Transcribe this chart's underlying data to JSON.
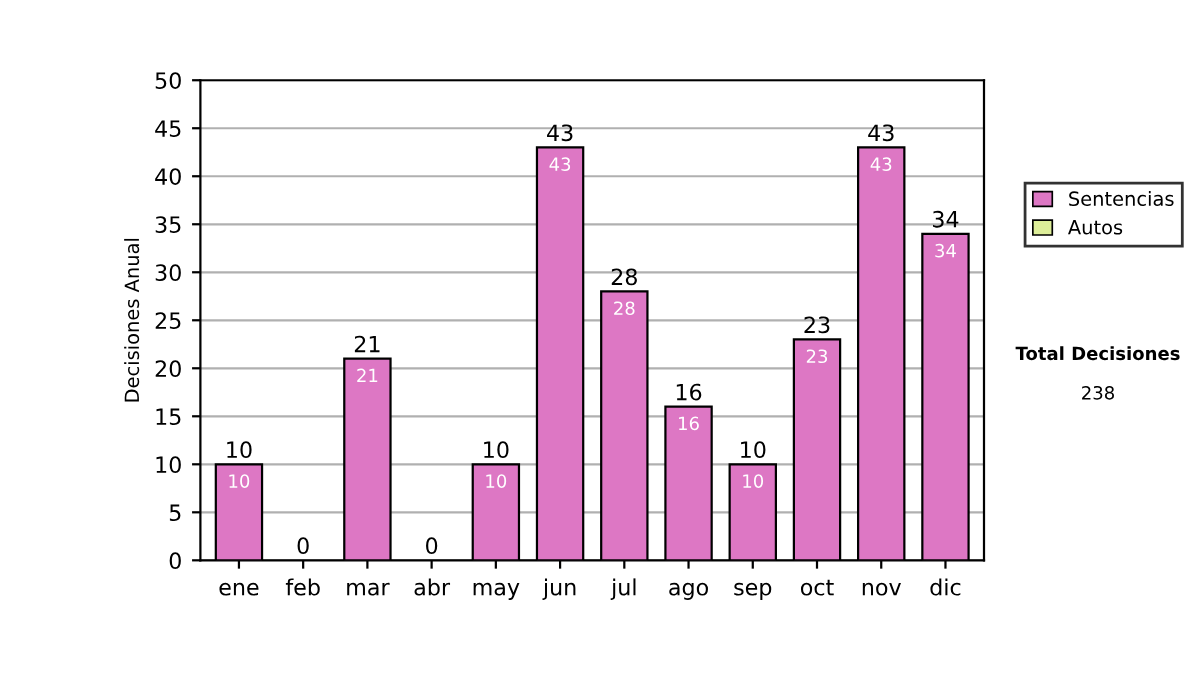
{
  "chart_data": {
    "type": "bar",
    "stacked": true,
    "categories": [
      "ene",
      "feb",
      "mar",
      "abr",
      "may",
      "jun",
      "jul",
      "ago",
      "sep",
      "oct",
      "nov",
      "dic"
    ],
    "series": [
      {
        "name": "Sentencias",
        "color": "#dd77c4",
        "values": [
          10,
          0,
          21,
          0,
          10,
          43,
          28,
          16,
          10,
          23,
          43,
          34
        ],
        "value_labels": [
          "10",
          null,
          "21",
          null,
          "10",
          "43",
          "28",
          "16",
          "10",
          "23",
          "43",
          "34"
        ]
      },
      {
        "name": "Autos",
        "color": "#ddee99",
        "values": [
          0,
          0,
          0,
          0,
          0,
          0,
          0,
          0,
          0,
          0,
          0,
          0
        ]
      }
    ],
    "totals": [
      "10",
      "0",
      "21",
      "0",
      "10",
      "43",
      "28",
      "16",
      "10",
      "23",
      "43",
      "34"
    ],
    "ylabel": "Decisiones Anual",
    "ylim": [
      0,
      50
    ],
    "yticks": [
      0,
      5,
      10,
      15,
      20,
      25,
      30,
      35,
      40,
      45,
      50
    ],
    "grid": "y",
    "legend": "right",
    "annotations": [
      "Total Decisiones",
      "238"
    ]
  }
}
